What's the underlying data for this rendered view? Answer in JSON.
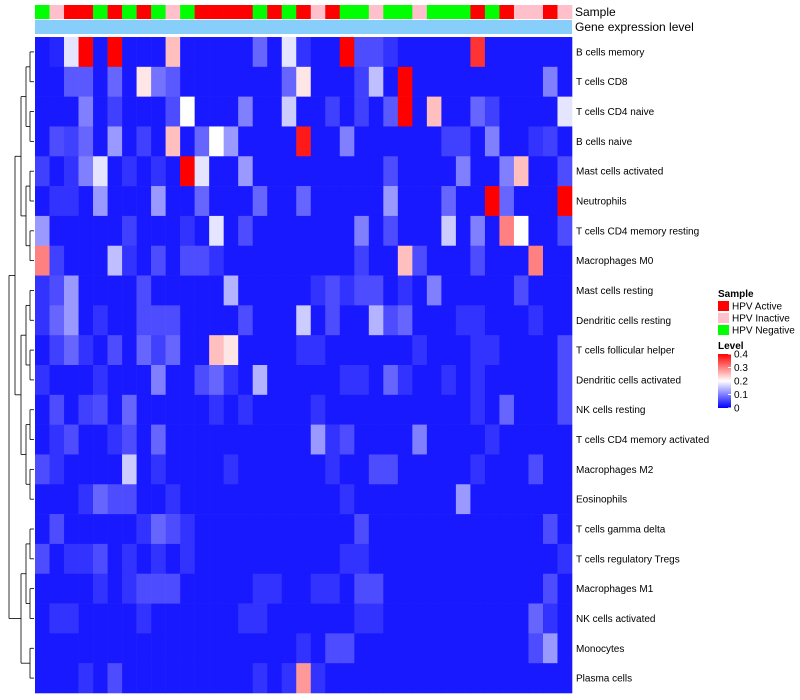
{
  "chart_data": {
    "type": "heatmap",
    "title": "",
    "annotation_labels": [
      "Sample",
      "Gene expression level"
    ],
    "rows": [
      "B cells memory",
      "T cells CD8",
      "T cells CD4 naive",
      "B cells naive",
      "Mast cells activated",
      "Neutrophils",
      "T cells CD4 memory resting",
      "Macrophages M0",
      "Mast cells resting",
      "Dendritic cells resting",
      "T cells follicular helper",
      "Dendritic cells activated",
      "NK cells resting",
      "T cells CD4 memory activated",
      "Macrophages M2",
      "Eosinophils",
      "T cells gamma delta",
      "T cells regulatory  Tregs",
      "Macrophages M1",
      "NK cells activated",
      "Monocytes",
      "Plasma cells"
    ],
    "sample_groups": [
      "N",
      "I",
      "A",
      "A",
      "N",
      "A",
      "N",
      "A",
      "N",
      "I",
      "N",
      "A",
      "A",
      "A",
      "A",
      "N",
      "A",
      "N",
      "A",
      "I",
      "A",
      "N",
      "N",
      "I",
      "N",
      "N",
      "I",
      "N",
      "N",
      "N",
      "A",
      "N",
      "A",
      "I",
      "I",
      "A",
      "I"
    ],
    "values": [
      [
        0.02,
        0.03,
        0.18,
        0.4,
        0.02,
        0.4,
        0.02,
        0.02,
        0.02,
        0.25,
        0.02,
        0.02,
        0.02,
        0.02,
        0.02,
        0.08,
        0.02,
        0.18,
        0.04,
        0.02,
        0.02,
        0.4,
        0.06,
        0.06,
        0.04,
        0.02,
        0.02,
        0.02,
        0.02,
        0.02,
        0.36,
        0.02,
        0.02,
        0.02,
        0.02,
        0.02,
        0.02
      ],
      [
        0.02,
        0.02,
        0.07,
        0.07,
        0.02,
        0.08,
        0.02,
        0.22,
        0.09,
        0.07,
        0.02,
        0.02,
        0.02,
        0.02,
        0.02,
        0.02,
        0.02,
        0.08,
        0.22,
        0.02,
        0.02,
        0.02,
        0.05,
        0.15,
        0.02,
        0.4,
        0.02,
        0.02,
        0.02,
        0.02,
        0.02,
        0.02,
        0.02,
        0.02,
        0.02,
        0.1,
        0.02
      ],
      [
        0.02,
        0.02,
        0.02,
        0.1,
        0.02,
        0.05,
        0.02,
        0.02,
        0.02,
        0.06,
        0.2,
        0.02,
        0.02,
        0.02,
        0.1,
        0.02,
        0.02,
        0.16,
        0.02,
        0.02,
        0.05,
        0.02,
        0.05,
        0.02,
        0.07,
        0.4,
        0.02,
        0.25,
        0.02,
        0.02,
        0.08,
        0.05,
        0.02,
        0.02,
        0.02,
        0.02,
        0.18
      ],
      [
        0.02,
        0.06,
        0.05,
        0.08,
        0.02,
        0.12,
        0.02,
        0.05,
        0.02,
        0.25,
        0.02,
        0.08,
        0.2,
        0.12,
        0.02,
        0.02,
        0.02,
        0.02,
        0.38,
        0.02,
        0.02,
        0.1,
        0.02,
        0.02,
        0.02,
        0.02,
        0.02,
        0.02,
        0.05,
        0.05,
        0.02,
        0.1,
        0.02,
        0.02,
        0.04,
        0.05,
        0.02
      ],
      [
        0.05,
        0.02,
        0.04,
        0.1,
        0.18,
        0.02,
        0.04,
        0.02,
        0.04,
        0.02,
        0.4,
        0.18,
        0.02,
        0.02,
        0.12,
        0.02,
        0.02,
        0.02,
        0.02,
        0.02,
        0.02,
        0.02,
        0.02,
        0.02,
        0.06,
        0.02,
        0.02,
        0.02,
        0.02,
        0.1,
        0.02,
        0.02,
        0.1,
        0.25,
        0.02,
        0.02,
        0.06
      ],
      [
        0.02,
        0.04,
        0.04,
        0.02,
        0.12,
        0.02,
        0.02,
        0.02,
        0.12,
        0.02,
        0.02,
        0.08,
        0.02,
        0.02,
        0.02,
        0.08,
        0.02,
        0.02,
        0.08,
        0.02,
        0.02,
        0.02,
        0.02,
        0.02,
        0.12,
        0.02,
        0.02,
        0.02,
        0.08,
        0.02,
        0.02,
        0.4,
        0.08,
        0.02,
        0.02,
        0.02,
        0.4
      ],
      [
        0.12,
        0.02,
        0.02,
        0.02,
        0.02,
        0.02,
        0.05,
        0.02,
        0.02,
        0.02,
        0.04,
        0.02,
        0.18,
        0.02,
        0.06,
        0.02,
        0.02,
        0.02,
        0.02,
        0.02,
        0.02,
        0.02,
        0.1,
        0.02,
        0.06,
        0.02,
        0.02,
        0.02,
        0.16,
        0.02,
        0.1,
        0.02,
        0.3,
        0.2,
        0.02,
        0.02,
        0.06
      ],
      [
        0.3,
        0.05,
        0.02,
        0.02,
        0.02,
        0.15,
        0.04,
        0.02,
        0.06,
        0.02,
        0.06,
        0.06,
        0.04,
        0.02,
        0.02,
        0.02,
        0.02,
        0.02,
        0.02,
        0.02,
        0.02,
        0.02,
        0.05,
        0.02,
        0.02,
        0.25,
        0.06,
        0.02,
        0.02,
        0.02,
        0.06,
        0.02,
        0.02,
        0.02,
        0.3,
        0.02,
        0.02
      ],
      [
        0.04,
        0.06,
        0.12,
        0.02,
        0.02,
        0.02,
        0.02,
        0.06,
        0.02,
        0.02,
        0.02,
        0.02,
        0.02,
        0.14,
        0.02,
        0.02,
        0.02,
        0.02,
        0.02,
        0.04,
        0.06,
        0.04,
        0.06,
        0.06,
        0.02,
        0.04,
        0.02,
        0.1,
        0.02,
        0.02,
        0.02,
        0.02,
        0.02,
        0.06,
        0.02,
        0.02,
        0.02
      ],
      [
        0.04,
        0.08,
        0.12,
        0.02,
        0.04,
        0.02,
        0.02,
        0.06,
        0.06,
        0.06,
        0.02,
        0.02,
        0.02,
        0.02,
        0.06,
        0.02,
        0.02,
        0.02,
        0.16,
        0.02,
        0.06,
        0.02,
        0.02,
        0.14,
        0.06,
        0.08,
        0.02,
        0.02,
        0.02,
        0.04,
        0.04,
        0.02,
        0.02,
        0.02,
        0.04,
        0.02,
        0.02
      ],
      [
        0.02,
        0.05,
        0.08,
        0.04,
        0.02,
        0.06,
        0.02,
        0.08,
        0.05,
        0.08,
        0.02,
        0.02,
        0.25,
        0.22,
        0.02,
        0.02,
        0.02,
        0.02,
        0.04,
        0.04,
        0.02,
        0.02,
        0.02,
        0.02,
        0.02,
        0.02,
        0.04,
        0.02,
        0.02,
        0.02,
        0.04,
        0.04,
        0.02,
        0.02,
        0.02,
        0.02,
        0.06
      ],
      [
        0.04,
        0.02,
        0.02,
        0.02,
        0.04,
        0.02,
        0.02,
        0.02,
        0.1,
        0.02,
        0.02,
        0.06,
        0.08,
        0.04,
        0.02,
        0.14,
        0.02,
        0.02,
        0.02,
        0.02,
        0.02,
        0.04,
        0.04,
        0.02,
        0.08,
        0.04,
        0.02,
        0.02,
        0.04,
        0.02,
        0.04,
        0.02,
        0.02,
        0.02,
        0.02,
        0.02,
        0.06
      ],
      [
        0.02,
        0.06,
        0.02,
        0.05,
        0.06,
        0.02,
        0.08,
        0.02,
        0.02,
        0.02,
        0.02,
        0.02,
        0.04,
        0.02,
        0.04,
        0.02,
        0.02,
        0.02,
        0.02,
        0.04,
        0.02,
        0.02,
        0.02,
        0.02,
        0.02,
        0.02,
        0.02,
        0.02,
        0.02,
        0.02,
        0.04,
        0.02,
        0.08,
        0.02,
        0.02,
        0.02,
        0.06
      ],
      [
        0.02,
        0.04,
        0.06,
        0.02,
        0.02,
        0.04,
        0.06,
        0.02,
        0.08,
        0.02,
        0.02,
        0.02,
        0.02,
        0.02,
        0.02,
        0.02,
        0.02,
        0.02,
        0.02,
        0.12,
        0.04,
        0.06,
        0.02,
        0.02,
        0.02,
        0.02,
        0.1,
        0.02,
        0.02,
        0.02,
        0.02,
        0.04,
        0.02,
        0.02,
        0.02,
        0.02,
        0.02
      ],
      [
        0.06,
        0.04,
        0.02,
        0.02,
        0.02,
        0.02,
        0.16,
        0.02,
        0.04,
        0.02,
        0.02,
        0.02,
        0.02,
        0.04,
        0.02,
        0.02,
        0.02,
        0.02,
        0.02,
        0.02,
        0.04,
        0.02,
        0.02,
        0.06,
        0.06,
        0.02,
        0.02,
        0.02,
        0.02,
        0.02,
        0.04,
        0.02,
        0.02,
        0.02,
        0.06,
        0.02,
        0.02
      ],
      [
        0.02,
        0.02,
        0.02,
        0.04,
        0.08,
        0.06,
        0.06,
        0.02,
        0.02,
        0.04,
        0.02,
        0.02,
        0.02,
        0.02,
        0.02,
        0.02,
        0.02,
        0.02,
        0.02,
        0.02,
        0.02,
        0.04,
        0.02,
        0.02,
        0.02,
        0.02,
        0.02,
        0.02,
        0.02,
        0.12,
        0.02,
        0.02,
        0.02,
        0.02,
        0.02,
        0.02,
        0.02
      ],
      [
        0.02,
        0.06,
        0.02,
        0.02,
        0.02,
        0.02,
        0.02,
        0.04,
        0.08,
        0.06,
        0.04,
        0.02,
        0.02,
        0.02,
        0.02,
        0.02,
        0.02,
        0.02,
        0.02,
        0.02,
        0.02,
        0.02,
        0.06,
        0.02,
        0.02,
        0.02,
        0.02,
        0.02,
        0.02,
        0.02,
        0.02,
        0.02,
        0.02,
        0.02,
        0.02,
        0.06,
        0.02
      ],
      [
        0.06,
        0.02,
        0.04,
        0.04,
        0.06,
        0.02,
        0.04,
        0.02,
        0.04,
        0.02,
        0.04,
        0.02,
        0.02,
        0.02,
        0.02,
        0.02,
        0.02,
        0.02,
        0.02,
        0.02,
        0.02,
        0.04,
        0.04,
        0.02,
        0.02,
        0.02,
        0.02,
        0.02,
        0.02,
        0.02,
        0.02,
        0.02,
        0.02,
        0.02,
        0.02,
        0.02,
        0.04
      ],
      [
        0.02,
        0.02,
        0.02,
        0.02,
        0.04,
        0.02,
        0.04,
        0.06,
        0.06,
        0.06,
        0.02,
        0.02,
        0.02,
        0.02,
        0.02,
        0.04,
        0.04,
        0.02,
        0.02,
        0.04,
        0.04,
        0.02,
        0.06,
        0.06,
        0.02,
        0.02,
        0.02,
        0.02,
        0.02,
        0.02,
        0.02,
        0.02,
        0.02,
        0.02,
        0.02,
        0.06,
        0.02
      ],
      [
        0.02,
        0.04,
        0.04,
        0.02,
        0.02,
        0.02,
        0.02,
        0.04,
        0.02,
        0.02,
        0.02,
        0.02,
        0.02,
        0.02,
        0.04,
        0.04,
        0.02,
        0.02,
        0.02,
        0.02,
        0.02,
        0.02,
        0.04,
        0.04,
        0.02,
        0.02,
        0.02,
        0.02,
        0.02,
        0.02,
        0.02,
        0.02,
        0.02,
        0.02,
        0.08,
        0.04,
        0.02
      ],
      [
        0.02,
        0.02,
        0.02,
        0.02,
        0.02,
        0.02,
        0.02,
        0.02,
        0.02,
        0.02,
        0.02,
        0.02,
        0.02,
        0.02,
        0.02,
        0.02,
        0.02,
        0.02,
        0.04,
        0.02,
        0.06,
        0.06,
        0.02,
        0.02,
        0.02,
        0.02,
        0.02,
        0.02,
        0.02,
        0.02,
        0.02,
        0.02,
        0.02,
        0.02,
        0.06,
        0.12,
        0.02
      ],
      [
        0.02,
        0.02,
        0.02,
        0.04,
        0.02,
        0.06,
        0.02,
        0.02,
        0.02,
        0.02,
        0.02,
        0.02,
        0.02,
        0.02,
        0.02,
        0.04,
        0.02,
        0.04,
        0.28,
        0.04,
        0.02,
        0.02,
        0.02,
        0.02,
        0.02,
        0.02,
        0.02,
        0.02,
        0.02,
        0.02,
        0.02,
        0.02,
        0.02,
        0.02,
        0.02,
        0.02,
        0.02
      ]
    ],
    "legend": {
      "sample_title": "Sample",
      "groups": [
        {
          "key": "A",
          "label": "HPV Active",
          "color": "#ff0000"
        },
        {
          "key": "I",
          "label": "HPV Inactive",
          "color": "#ffc0cb"
        },
        {
          "key": "N",
          "label": "HPV Negative",
          "color": "#00ff00"
        }
      ],
      "level_title": "Level",
      "level_ticks": [
        "0.4",
        "0.3",
        "0.2",
        "0.1",
        "0"
      ],
      "level_range": [
        0,
        0.4
      ],
      "level_colors": {
        "low": "#0000ff",
        "mid": "#ffffff",
        "high": "#ff0000"
      },
      "expression_bar_color": "#87cefa"
    },
    "dendrogram": "rows"
  }
}
